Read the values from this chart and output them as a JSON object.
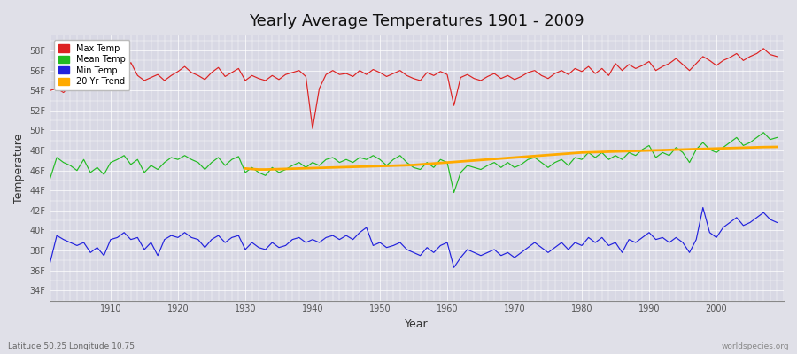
{
  "title": "Yearly Average Temperatures 1901 - 2009",
  "xlabel": "Year",
  "ylabel": "Temperature",
  "bottom_left": "Latitude 50.25 Longitude 10.75",
  "bottom_right": "worldspecies.org",
  "bg_color": "#e0e0e8",
  "plot_bg_color": "#d8d8e4",
  "grid_color": "#ffffff",
  "line_colors": {
    "max": "#dd2222",
    "mean": "#22bb22",
    "min": "#2222dd",
    "trend": "#ffaa00"
  },
  "legend_labels": [
    "Max Temp",
    "Mean Temp",
    "Min Temp",
    "20 Yr Trend"
  ],
  "ylim": [
    33,
    59.5
  ],
  "yticks": [
    34,
    36,
    38,
    40,
    42,
    44,
    46,
    48,
    50,
    52,
    54,
    56,
    58
  ],
  "ytick_labels": [
    "34F",
    "36F",
    "38F",
    "40F",
    "42F",
    "44F",
    "46F",
    "48F",
    "50F",
    "52F",
    "54F",
    "56F",
    "58F"
  ],
  "xlim": [
    1901,
    2010
  ],
  "years": [
    1901,
    1902,
    1903,
    1904,
    1905,
    1906,
    1907,
    1908,
    1909,
    1910,
    1911,
    1912,
    1913,
    1914,
    1915,
    1916,
    1917,
    1918,
    1919,
    1920,
    1921,
    1922,
    1923,
    1924,
    1925,
    1926,
    1927,
    1928,
    1929,
    1930,
    1931,
    1932,
    1933,
    1934,
    1935,
    1936,
    1937,
    1938,
    1939,
    1940,
    1941,
    1942,
    1943,
    1944,
    1945,
    1946,
    1947,
    1948,
    1949,
    1950,
    1951,
    1952,
    1953,
    1954,
    1955,
    1956,
    1957,
    1958,
    1959,
    1960,
    1961,
    1962,
    1963,
    1964,
    1965,
    1966,
    1967,
    1968,
    1969,
    1970,
    1971,
    1972,
    1973,
    1974,
    1975,
    1976,
    1977,
    1978,
    1979,
    1980,
    1981,
    1982,
    1983,
    1984,
    1985,
    1986,
    1987,
    1988,
    1989,
    1990,
    1991,
    1992,
    1993,
    1994,
    1995,
    1996,
    1997,
    1998,
    1999,
    2000,
    2001,
    2002,
    2003,
    2004,
    2005,
    2006,
    2007,
    2008,
    2009
  ],
  "max_temp": [
    54.0,
    54.2,
    53.8,
    54.5,
    54.0,
    54.3,
    54.8,
    54.5,
    54.1,
    54.6,
    55.1,
    55.8,
    56.8,
    55.5,
    55.0,
    55.3,
    55.6,
    55.0,
    55.5,
    55.9,
    56.4,
    55.8,
    55.5,
    55.1,
    55.8,
    56.3,
    55.4,
    55.8,
    56.2,
    55.0,
    55.5,
    55.2,
    55.0,
    55.5,
    55.1,
    55.6,
    55.8,
    56.0,
    55.4,
    50.2,
    54.2,
    55.6,
    56.0,
    55.6,
    55.7,
    55.4,
    56.0,
    55.6,
    56.1,
    55.8,
    55.4,
    55.7,
    56.0,
    55.5,
    55.2,
    55.0,
    55.8,
    55.5,
    55.9,
    55.6,
    52.5,
    55.3,
    55.6,
    55.2,
    55.0,
    55.4,
    55.7,
    55.2,
    55.5,
    55.1,
    55.4,
    55.8,
    56.0,
    55.5,
    55.2,
    55.7,
    56.0,
    55.6,
    56.2,
    55.9,
    56.4,
    55.7,
    56.2,
    55.5,
    56.7,
    56.0,
    56.6,
    56.2,
    56.5,
    56.9,
    56.0,
    56.4,
    56.7,
    57.2,
    56.6,
    56.0,
    56.7,
    57.4,
    57.0,
    56.5,
    57.0,
    57.3,
    57.7,
    57.0,
    57.4,
    57.7,
    58.2,
    57.6,
    57.4
  ],
  "mean_temp": [
    45.2,
    47.3,
    46.8,
    46.5,
    46.0,
    47.1,
    45.8,
    46.3,
    45.6,
    46.8,
    47.1,
    47.5,
    46.6,
    47.1,
    45.8,
    46.5,
    46.1,
    46.8,
    47.3,
    47.1,
    47.5,
    47.1,
    46.8,
    46.1,
    46.8,
    47.3,
    46.5,
    47.1,
    47.4,
    45.8,
    46.3,
    45.8,
    45.5,
    46.3,
    45.8,
    46.1,
    46.5,
    46.8,
    46.3,
    46.8,
    46.5,
    47.1,
    47.3,
    46.8,
    47.1,
    46.8,
    47.3,
    47.1,
    47.5,
    47.1,
    46.5,
    47.1,
    47.5,
    46.8,
    46.3,
    46.1,
    46.8,
    46.3,
    47.1,
    46.8,
    43.8,
    45.8,
    46.5,
    46.3,
    46.1,
    46.5,
    46.8,
    46.3,
    46.8,
    46.3,
    46.6,
    47.1,
    47.3,
    46.8,
    46.3,
    46.8,
    47.1,
    46.5,
    47.3,
    47.1,
    47.8,
    47.3,
    47.8,
    47.1,
    47.5,
    47.1,
    47.8,
    47.5,
    48.1,
    48.5,
    47.3,
    47.8,
    47.5,
    48.3,
    47.8,
    46.8,
    48.1,
    48.8,
    48.1,
    47.8,
    48.3,
    48.8,
    49.3,
    48.5,
    48.8,
    49.3,
    49.8,
    49.1,
    49.3
  ],
  "min_temp": [
    36.8,
    39.5,
    39.1,
    38.8,
    38.5,
    38.8,
    37.8,
    38.3,
    37.5,
    39.1,
    39.3,
    39.8,
    39.1,
    39.3,
    38.1,
    38.8,
    37.5,
    39.1,
    39.5,
    39.3,
    39.8,
    39.3,
    39.1,
    38.3,
    39.1,
    39.5,
    38.8,
    39.3,
    39.5,
    38.1,
    38.8,
    38.3,
    38.1,
    38.8,
    38.3,
    38.5,
    39.1,
    39.3,
    38.8,
    39.1,
    38.8,
    39.3,
    39.5,
    39.1,
    39.5,
    39.1,
    39.8,
    40.3,
    38.5,
    38.8,
    38.3,
    38.5,
    38.8,
    38.1,
    37.8,
    37.5,
    38.3,
    37.8,
    38.5,
    38.8,
    36.3,
    37.3,
    38.1,
    37.8,
    37.5,
    37.8,
    38.1,
    37.5,
    37.8,
    37.3,
    37.8,
    38.3,
    38.8,
    38.3,
    37.8,
    38.3,
    38.8,
    38.1,
    38.8,
    38.5,
    39.3,
    38.8,
    39.3,
    38.5,
    38.8,
    37.8,
    39.1,
    38.8,
    39.3,
    39.8,
    39.1,
    39.3,
    38.8,
    39.3,
    38.8,
    37.8,
    39.1,
    42.3,
    39.8,
    39.3,
    40.3,
    40.8,
    41.3,
    40.5,
    40.8,
    41.3,
    41.8,
    41.1,
    40.8
  ],
  "trend_start_year": 1930,
  "trend_end_year": 2009,
  "trend": [
    46.2,
    46.15,
    46.1,
    46.1,
    46.12,
    46.14,
    46.16,
    46.18,
    46.2,
    46.22,
    46.24,
    46.26,
    46.28,
    46.3,
    46.32,
    46.34,
    46.36,
    46.38,
    46.4,
    46.42,
    46.44,
    46.46,
    46.48,
    46.5,
    46.52,
    46.55,
    46.6,
    46.65,
    46.7,
    46.75,
    46.8,
    46.85,
    46.9,
    46.95,
    47.0,
    47.05,
    47.1,
    47.15,
    47.2,
    47.25,
    47.3,
    47.35,
    47.4,
    47.45,
    47.5,
    47.55,
    47.6,
    47.65,
    47.7,
    47.75,
    47.8,
    47.82,
    47.84,
    47.86,
    47.88,
    47.9,
    47.92,
    47.94,
    47.96,
    47.98,
    48.0,
    48.02,
    48.04,
    48.06,
    48.08,
    48.1,
    48.12,
    48.14,
    48.16,
    48.18,
    48.2,
    48.22,
    48.24,
    48.26,
    48.28,
    48.3,
    48.32,
    48.34,
    48.35,
    48.36
  ]
}
